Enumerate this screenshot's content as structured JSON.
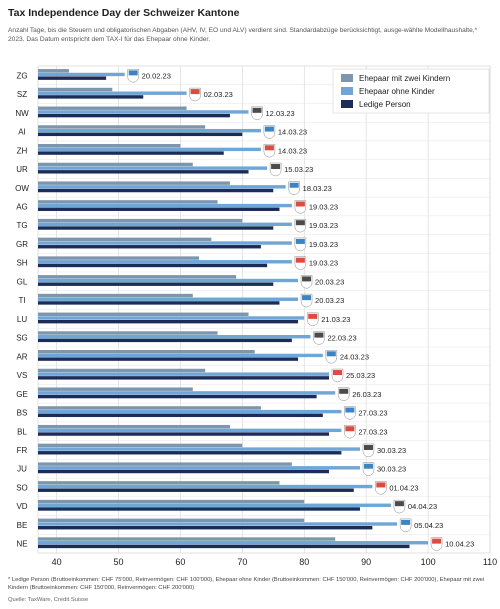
{
  "title": "Tax Independence Day der Schweizer Kantone",
  "subtitle": "Anzahl Tage, bis die Steuern und obligatorischen Abgaben (AHV, IV, EO und ALV) verdient sind. Standardabzüge berücksichtigt, ausge-wählte Modellhaushalte,* 2023. Das Datum entspricht dem TAX-I für das Ehepaar ohne Kinder.",
  "footnote": "* Ledige Person (Bruttoeinkommen: CHF 75'000, Reinvermögen: CHF 100'000), Ehepaar ohne Kinder (Bruttoeinkommen: CHF 150'000, Reinvermögen: CHF 200'000), Ehepaar mit zwei Kindern (Bruttoeinkommen: CHF 150'000, Reinvermögen: CHF 200'000)",
  "source": "Quelle: TaxWare, Credit Suisse",
  "colors": {
    "ehepaar_kinder": "#7d95ad",
    "ehepaar_ohne": "#6fa6d6",
    "ledige": "#1b2c5a"
  },
  "chart_data": {
    "type": "bar",
    "orientation": "horizontal",
    "xlim": [
      37,
      110
    ],
    "xticks": [
      40,
      50,
      60,
      70,
      80,
      90,
      100,
      110
    ],
    "grid": true,
    "legend_position": "top-right",
    "categories": [
      "ZG",
      "SZ",
      "NW",
      "AI",
      "ZH",
      "UR",
      "OW",
      "AG",
      "TG",
      "GR",
      "SH",
      "GL",
      "TI",
      "LU",
      "SG",
      "AR",
      "VS",
      "GE",
      "BS",
      "BL",
      "FR",
      "JU",
      "SO",
      "VD",
      "BE",
      "NE"
    ],
    "dates": [
      "20.02.23",
      "02.03.23",
      "12.03.23",
      "14.03.23",
      "14.03.23",
      "15.03.23",
      "18.03.23",
      "19.03.23",
      "19.03.23",
      "19.03.23",
      "19.03.23",
      "20.03.23",
      "20.03.23",
      "21.03.23",
      "22.03.23",
      "24.03.23",
      "25.03.23",
      "26.03.23",
      "27.03.23",
      "27.03.23",
      "30.03.23",
      "30.03.23",
      "01.04.23",
      "04.04.23",
      "05.04.23",
      "10.04.23"
    ],
    "flags": [
      "zug-flag-icon",
      "schwyz-flag-icon",
      "nidwalden-flag-icon",
      "appenzell-ir-flag-icon",
      "zurich-flag-icon",
      "uri-flag-icon",
      "obwalden-flag-icon",
      "aargau-flag-icon",
      "thurgau-flag-icon",
      "graubuenden-flag-icon",
      "schaffhausen-flag-icon",
      "glarus-flag-icon",
      "ticino-flag-icon",
      "luzern-flag-icon",
      "stgallen-flag-icon",
      "appenzell-ar-flag-icon",
      "valais-flag-icon",
      "geneve-flag-icon",
      "basel-stadt-flag-icon",
      "basel-land-flag-icon",
      "fribourg-flag-icon",
      "jura-flag-icon",
      "solothurn-flag-icon",
      "vaud-flag-icon",
      "bern-flag-icon",
      "neuchatel-flag-icon"
    ],
    "series": [
      {
        "name": "Ehepaar mit zwei Kindern",
        "values": [
          42,
          49,
          61,
          64,
          60,
          62,
          68,
          66,
          70,
          65,
          63,
          69,
          62,
          71,
          66,
          72,
          64,
          62,
          73,
          68,
          70,
          78,
          76,
          80,
          80,
          85
        ]
      },
      {
        "name": "Ehepaar ohne Kinder",
        "values": [
          51,
          61,
          71,
          73,
          73,
          74,
          77,
          78,
          78,
          78,
          78,
          79,
          79,
          80,
          81,
          83,
          84,
          85,
          86,
          86,
          89,
          89,
          91,
          94,
          95,
          100
        ]
      },
      {
        "name": "Ledige Person",
        "values": [
          48,
          54,
          68,
          70,
          67,
          71,
          75,
          76,
          75,
          73,
          74,
          75,
          76,
          79,
          78,
          79,
          84,
          82,
          83,
          84,
          86,
          84,
          88,
          89,
          91,
          97
        ]
      }
    ]
  }
}
